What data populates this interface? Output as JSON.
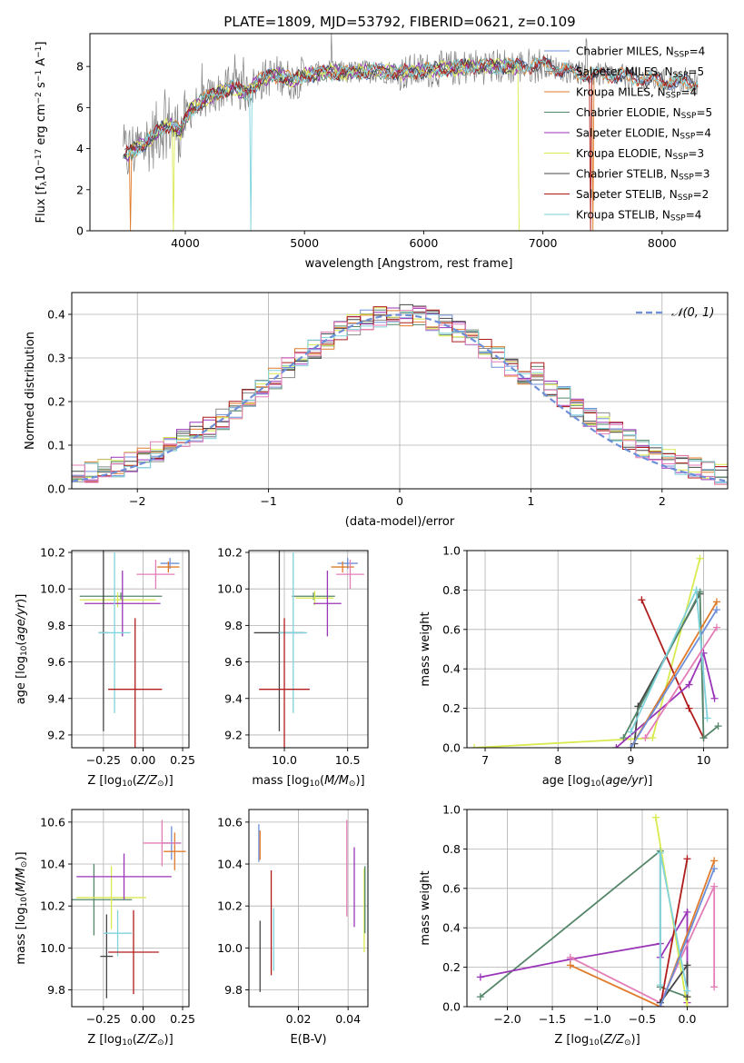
{
  "figure": {
    "title": "PLATE=1809, MJD=53792, FIBERID=0621, z=0.109"
  },
  "colors": {
    "Chabrier MILES": "#6d8ed8",
    "Salpeter MILES": "#8a8a8a",
    "Kroupa MILES": "#e07b2a",
    "Chabrier ELODIE": "#55866a",
    "Salpeter ELODIE": "#9a35b8",
    "Kroupa ELODIE": "#d9ea4f",
    "Chabrier STELIB": "#454545",
    "Salpeter STELIB": "#b01c1c",
    "Kroupa STELIB": "#7fd3dc",
    "pink": "#e47cb8"
  },
  "chart_data": [
    {
      "id": "spectrum",
      "type": "line",
      "xlabel": "wavelength [Angstrom, rest frame]",
      "ylabel": "Flux [f_λ 10^-17 erg cm^-2 s^-1 A^-1]",
      "xlim": [
        3200,
        8550
      ],
      "ylim": [
        0,
        9.6
      ],
      "xticks": [
        "4000",
        "5000",
        "6000",
        "7000",
        "8000"
      ],
      "yticks": [
        "0",
        "2",
        "4",
        "6",
        "8"
      ],
      "legend": {
        "placement": "top-right",
        "entries": [
          {
            "name": "Chabrier MILES",
            "nssp": "4"
          },
          {
            "name": "Salpeter MILES",
            "nssp": "5"
          },
          {
            "name": "Kroupa MILES",
            "nssp": "4"
          },
          {
            "name": "Chabrier ELODIE",
            "nssp": "5"
          },
          {
            "name": "Salpeter ELODIE",
            "nssp": "4"
          },
          {
            "name": "Kroupa ELODIE",
            "nssp": "3"
          },
          {
            "name": "Chabrier STELIB",
            "nssp": "3"
          },
          {
            "name": "Salpeter STELIB",
            "nssp": "2"
          },
          {
            "name": "Kroupa STELIB",
            "nssp": "4"
          }
        ]
      },
      "data_trace": {
        "x": [
          3480,
          3560,
          3640,
          3720,
          3800,
          3880,
          3960,
          4040,
          4120,
          4200,
          4300,
          4400,
          4500,
          4600,
          4700,
          4800,
          4900,
          5000,
          5200,
          5400,
          5600,
          5800,
          6000,
          6200,
          6400,
          6600,
          6800,
          7000,
          7200,
          7400,
          7600,
          7800,
          8000,
          8200,
          8300
        ],
        "y": [
          3.6,
          3.9,
          4.2,
          4.5,
          5.0,
          5.2,
          4.8,
          5.9,
          6.2,
          6.5,
          6.8,
          7.0,
          6.7,
          7.2,
          7.5,
          7.6,
          7.3,
          7.6,
          7.7,
          7.7,
          7.8,
          7.7,
          7.8,
          7.9,
          8.0,
          8.0,
          8.0,
          8.1,
          7.8,
          7.6,
          7.6,
          7.4,
          7.3,
          7.2,
          7.2
        ]
      }
    },
    {
      "id": "residuals",
      "type": "histogram",
      "xlabel": "(data-model)/error",
      "ylabel": "Normed distribution",
      "xlim": [
        -2.5,
        2.5
      ],
      "ylim": [
        0,
        0.45
      ],
      "xticks": [
        "−2",
        "−1",
        "0",
        "1",
        "2"
      ],
      "yticks": [
        "0.0",
        "0.1",
        "0.2",
        "0.3",
        "0.4"
      ],
      "grid": true,
      "legend": {
        "placement": "top-right",
        "entries": [
          {
            "name": "𝒩(0, 1)"
          }
        ]
      },
      "bin_width": 0.1
    },
    {
      "id": "age_vs_Z",
      "type": "errorbar",
      "xlabel": "Z [log10(Z/Z⊙)]",
      "ylabel": "age  [log10(age/yr)]",
      "xlim": [
        -0.45,
        0.29
      ],
      "ylim": [
        9.13,
        10.21
      ],
      "xticks": [
        "−0.25",
        "0.00",
        "0.25"
      ],
      "yticks": [
        "9.2",
        "9.4",
        "9.6",
        "9.8",
        "10.0",
        "10.2"
      ],
      "grid": true,
      "points": [
        {
          "series": "Chabrier MILES",
          "x": 0.17,
          "xerr": 0.06,
          "y": 10.14,
          "yerr": 0.03
        },
        {
          "series": "Kroupa MILES",
          "x": 0.16,
          "xerr": 0.07,
          "y": 10.12,
          "yerr": 0.03
        },
        {
          "series": "pink",
          "x": 0.08,
          "xerr": 0.12,
          "y": 10.08,
          "yerr": 0.08
        },
        {
          "series": "Chabrier ELODIE",
          "x": -0.14,
          "xerr": 0.26,
          "y": 9.96,
          "yerr": 0.02
        },
        {
          "series": "Kroupa ELODIE",
          "x": -0.16,
          "xerr": 0.24,
          "y": 9.94,
          "yerr": 0.04
        },
        {
          "series": "Salpeter ELODIE",
          "x": -0.13,
          "xerr": 0.24,
          "y": 9.92,
          "yerr": 0.18
        },
        {
          "series": "Chabrier STELIB",
          "x": -0.25,
          "xerr": 0.03,
          "y": 9.76,
          "yerr": 0.54
        },
        {
          "series": "Kroupa STELIB",
          "x": -0.18,
          "xerr": 0.1,
          "y": 9.76,
          "yerr": 0.44
        },
        {
          "series": "Salpeter STELIB",
          "x": -0.05,
          "xerr": 0.17,
          "y": 9.45,
          "yerr": 0.39
        }
      ]
    },
    {
      "id": "age_vs_mass",
      "type": "errorbar",
      "xlabel": "mass [log10(M/M⊙)]",
      "ylabel": "",
      "xlim": [
        9.72,
        10.66
      ],
      "ylim": [
        9.13,
        10.21
      ],
      "xticks": [
        "10.0",
        "10.5"
      ],
      "yticks": [
        "9.2",
        "9.4",
        "9.6",
        "9.8",
        "10.0",
        "10.2"
      ],
      "grid": true,
      "points": [
        {
          "series": "Chabrier MILES",
          "x": 10.5,
          "xerr": 0.08,
          "y": 10.14,
          "yerr": 0.03
        },
        {
          "series": "Kroupa MILES",
          "x": 10.46,
          "xerr": 0.09,
          "y": 10.12,
          "yerr": 0.03
        },
        {
          "series": "pink",
          "x": 10.52,
          "xerr": 0.11,
          "y": 10.08,
          "yerr": 0.08
        },
        {
          "series": "Chabrier ELODIE",
          "x": 10.23,
          "xerr": 0.17,
          "y": 9.96,
          "yerr": 0.02
        },
        {
          "series": "Kroupa ELODIE",
          "x": 10.24,
          "xerr": 0.15,
          "y": 9.95,
          "yerr": 0.04
        },
        {
          "series": "Salpeter ELODIE",
          "x": 10.34,
          "xerr": 0.11,
          "y": 9.92,
          "yerr": 0.18
        },
        {
          "series": "Chabrier STELIB",
          "x": 9.96,
          "xerr": 0.2,
          "y": 9.76,
          "yerr": 0.54
        },
        {
          "series": "Kroupa STELIB",
          "x": 10.07,
          "xerr": 0.11,
          "y": 9.76,
          "yerr": 0.44
        },
        {
          "series": "Salpeter STELIB",
          "x": 10.0,
          "xerr": 0.2,
          "y": 9.45,
          "yerr": 0.39
        }
      ]
    },
    {
      "id": "weight_vs_age",
      "type": "line",
      "xlabel": "age  [log10(age/yr)]",
      "ylabel": "mass weight",
      "xlim": [
        6.75,
        10.33
      ],
      "ylim": [
        0,
        1
      ],
      "xticks": [
        "7",
        "8",
        "9",
        "10"
      ],
      "yticks": [
        "0.0",
        "0.2",
        "0.4",
        "0.6",
        "0.8",
        "1.0"
      ],
      "grid": true,
      "series": [
        {
          "series": "Kroupa ELODIE",
          "x": [
            6.85,
            9.3,
            9.95
          ],
          "y": [
            0.0,
            0.05,
            0.96
          ]
        },
        {
          "series": "Salpeter STELIB",
          "x": [
            9.15,
            9.8,
            10.0
          ],
          "y": [
            0.75,
            0.2,
            0.05
          ]
        },
        {
          "series": "Chabrier STELIB",
          "x": [
            9.05,
            9.1,
            9.95
          ],
          "y": [
            0.02,
            0.21,
            0.78
          ]
        },
        {
          "series": "Chabrier ELODIE",
          "x": [
            8.9,
            9.95,
            10.0,
            10.2
          ],
          "y": [
            0.05,
            0.79,
            0.05,
            0.11
          ]
        },
        {
          "series": "Salpeter ELODIE",
          "x": [
            8.8,
            9.8,
            10.0,
            10.15
          ],
          "y": [
            0.0,
            0.32,
            0.48,
            0.25
          ]
        },
        {
          "series": "Kroupa MILES",
          "x": [
            9.0,
            10.18
          ],
          "y": [
            0.0,
            0.74
          ]
        },
        {
          "series": "Chabrier MILES",
          "x": [
            9.0,
            10.18
          ],
          "y": [
            0.0,
            0.7
          ]
        },
        {
          "series": "Kroupa STELIB",
          "x": [
            9.0,
            9.9,
            10.05
          ],
          "y": [
            0.08,
            0.8,
            0.15
          ]
        },
        {
          "series": "pink",
          "x": [
            9.2,
            10.18
          ],
          "y": [
            0.05,
            0.61
          ]
        }
      ]
    },
    {
      "id": "mass_vs_Z",
      "type": "errorbar",
      "xlabel": "Z [log10(Z/Z⊙)]",
      "ylabel": "mass [log10(M/M⊙)]",
      "xlim": [
        -0.45,
        0.29
      ],
      "ylim": [
        9.72,
        10.66
      ],
      "xticks": [
        "−0.25",
        "0.00",
        "0.25"
      ],
      "yticks": [
        "9.8",
        "10.0",
        "10.2",
        "10.4",
        "10.6"
      ],
      "grid": true,
      "points": [
        {
          "series": "Chabrier MILES",
          "x": 0.18,
          "xerr": 0.06,
          "y": 10.5,
          "yerr": 0.08
        },
        {
          "series": "Kroupa MILES",
          "x": 0.2,
          "xerr": 0.07,
          "y": 10.46,
          "yerr": 0.09
        },
        {
          "series": "pink",
          "x": 0.12,
          "xerr": 0.12,
          "y": 10.5,
          "yerr": 0.11
        },
        {
          "series": "Chabrier ELODIE",
          "x": -0.31,
          "xerr": 0.24,
          "y": 10.23,
          "yerr": 0.17
        },
        {
          "series": "Kroupa ELODIE",
          "x": -0.2,
          "xerr": 0.22,
          "y": 10.24,
          "yerr": 0.15
        },
        {
          "series": "Salpeter ELODIE",
          "x": -0.12,
          "xerr": 0.3,
          "y": 10.34,
          "yerr": 0.11
        },
        {
          "series": "Chabrier STELIB",
          "x": -0.23,
          "xerr": 0.04,
          "y": 9.96,
          "yerr": 0.2
        },
        {
          "series": "Kroupa STELIB",
          "x": -0.16,
          "xerr": 0.09,
          "y": 10.07,
          "yerr": 0.11
        },
        {
          "series": "Salpeter STELIB",
          "x": -0.06,
          "xerr": 0.16,
          "y": 9.98,
          "yerr": 0.2
        }
      ]
    },
    {
      "id": "mass_vs_ebv",
      "type": "errorbar",
      "xlabel": "E(B-V)",
      "ylabel": "",
      "xlim": [
        0.0,
        0.048
      ],
      "ylim": [
        9.72,
        10.66
      ],
      "xticks": [
        "0.02",
        "0.04"
      ],
      "yticks": [
        "9.8",
        "10.0",
        "10.2",
        "10.4",
        "10.6"
      ],
      "grid": true,
      "points": [
        {
          "series": "Chabrier MILES",
          "x": 0.004,
          "y": 10.5,
          "yerr": 0.09
        },
        {
          "series": "Kroupa MILES",
          "x": 0.0045,
          "y": 10.49,
          "yerr": 0.07
        },
        {
          "series": "Chabrier STELIB",
          "x": 0.0045,
          "y": 9.96,
          "yerr": 0.17
        },
        {
          "series": "Salpeter STELIB",
          "x": 0.009,
          "y": 10.12,
          "yerr": 0.25
        },
        {
          "series": "Kroupa STELIB",
          "x": 0.01,
          "y": 10.04,
          "yerr": 0.15
        },
        {
          "series": "pink",
          "x": 0.0395,
          "y": 10.38,
          "yerr": 0.23
        },
        {
          "series": "Salpeter ELODIE",
          "x": 0.0425,
          "y": 10.29,
          "yerr": 0.19
        },
        {
          "series": "Kroupa ELODIE",
          "x": 0.0465,
          "y": 10.18,
          "yerr": 0.2
        },
        {
          "series": "Chabrier ELODIE",
          "x": 0.0468,
          "y": 10.23,
          "yerr": 0.16
        }
      ]
    },
    {
      "id": "weight_vs_Z",
      "type": "line",
      "xlabel": "Z [log10(Z/Z⊙)]",
      "ylabel": "mass weight",
      "xlim": [
        -2.45,
        0.45
      ],
      "ylim": [
        0,
        1
      ],
      "xticks": [
        "−2.0",
        "−1.5",
        "−1.0",
        "−0.5",
        "0.0"
      ],
      "yticks": [
        "0.0",
        "0.2",
        "0.4",
        "0.6",
        "0.8",
        "1.0"
      ],
      "grid": true,
      "series": [
        {
          "series": "Chabrier ELODIE",
          "x": [
            -2.3,
            -0.3,
            -0.3,
            0.0
          ],
          "y": [
            0.05,
            0.79,
            0.1,
            0.05
          ]
        },
        {
          "series": "Salpeter ELODIE",
          "x": [
            -2.3,
            -1.3,
            -0.3,
            -0.3,
            0.0,
            0.0
          ],
          "y": [
            0.15,
            0.24,
            0.32,
            0.25,
            0.48,
            0.02
          ]
        },
        {
          "series": "Kroupa MILES",
          "x": [
            -1.3,
            -0.3,
            0.3
          ],
          "y": [
            0.21,
            0.0,
            0.74
          ]
        },
        {
          "series": "pink",
          "x": [
            -1.3,
            -0.3,
            0.3,
            0.3
          ],
          "y": [
            0.25,
            0.02,
            0.61,
            0.1
          ]
        },
        {
          "series": "Kroupa ELODIE",
          "x": [
            -0.35,
            0.0,
            0.0
          ],
          "y": [
            0.96,
            0.0,
            0.05
          ]
        },
        {
          "series": "Salpeter STELIB",
          "x": [
            -0.3,
            0.0
          ],
          "y": [
            0.0,
            0.75
          ]
        },
        {
          "series": "Chabrier STELIB",
          "x": [
            -0.3,
            0.0,
            0.0
          ],
          "y": [
            0.02,
            0.21,
            0.05
          ]
        },
        {
          "series": "Kroupa STELIB",
          "x": [
            -0.3,
            -0.3,
            0.0
          ],
          "y": [
            0.11,
            0.78,
            0.08
          ]
        },
        {
          "series": "Chabrier MILES",
          "x": [
            -0.3,
            0.3
          ],
          "y": [
            0.0,
            0.7
          ]
        }
      ]
    }
  ]
}
